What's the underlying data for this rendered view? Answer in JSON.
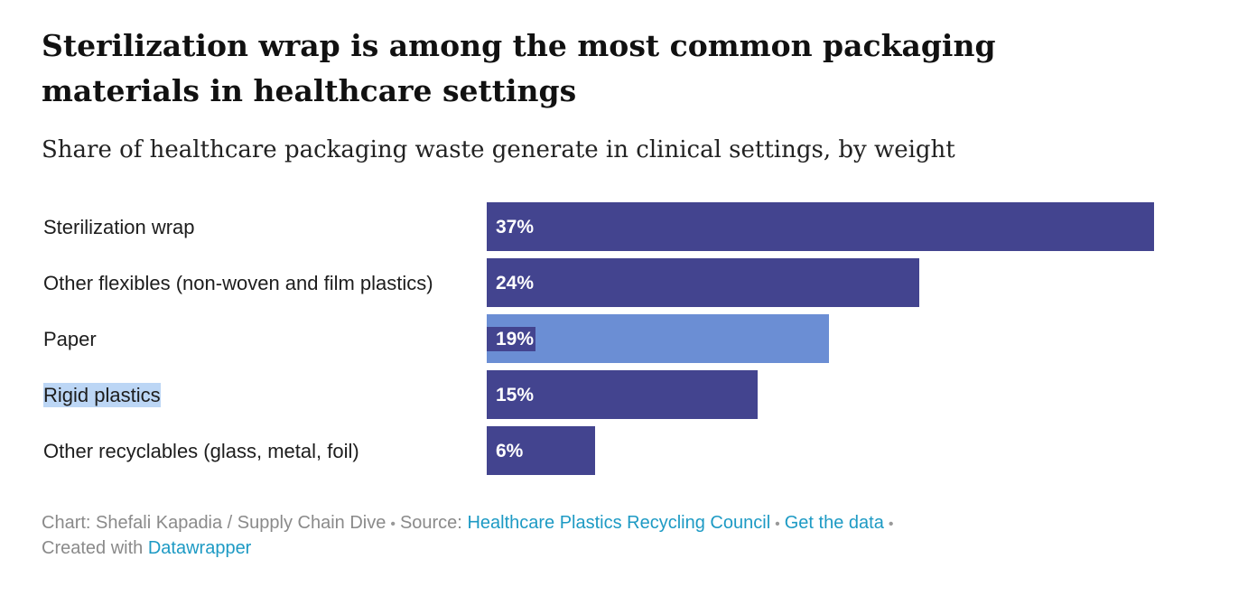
{
  "title": "Sterilization wrap is among the most common packaging materials in healthcare settings",
  "subtitle": "Share of healthcare packaging waste generate in clinical settings, by weight",
  "colors": {
    "bar": "#43448f",
    "bar_hover": "#6b8ed4",
    "label_highlight": "#bcd6f5",
    "link": "#1d9ac4",
    "footer_text": "#8a8a8a"
  },
  "chart_data": {
    "type": "bar",
    "orientation": "horizontal",
    "categories": [
      "Sterilization wrap",
      "Other flexibles (non-woven and film plastics)",
      "Paper",
      "Rigid plastics",
      "Other recyclables (glass, metal, foil)"
    ],
    "values": [
      37,
      24,
      19,
      15,
      6
    ],
    "value_labels": [
      "37%",
      "24%",
      "19%",
      "15%",
      "6%"
    ],
    "unit": "%",
    "xlim": [
      0,
      37
    ],
    "hovered_index": 2,
    "highlighted_label_index": 3,
    "grid": false,
    "legend": "none"
  },
  "footer": {
    "chart_credit": "Chart: Shefali Kapadia / Supply Chain Dive",
    "source_label": "Source:",
    "source_link": "Healthcare Plastics Recycling Council",
    "data_link": "Get the data",
    "separator": "•",
    "created_with": "Created with",
    "datawrapper_link": "Datawrapper"
  }
}
